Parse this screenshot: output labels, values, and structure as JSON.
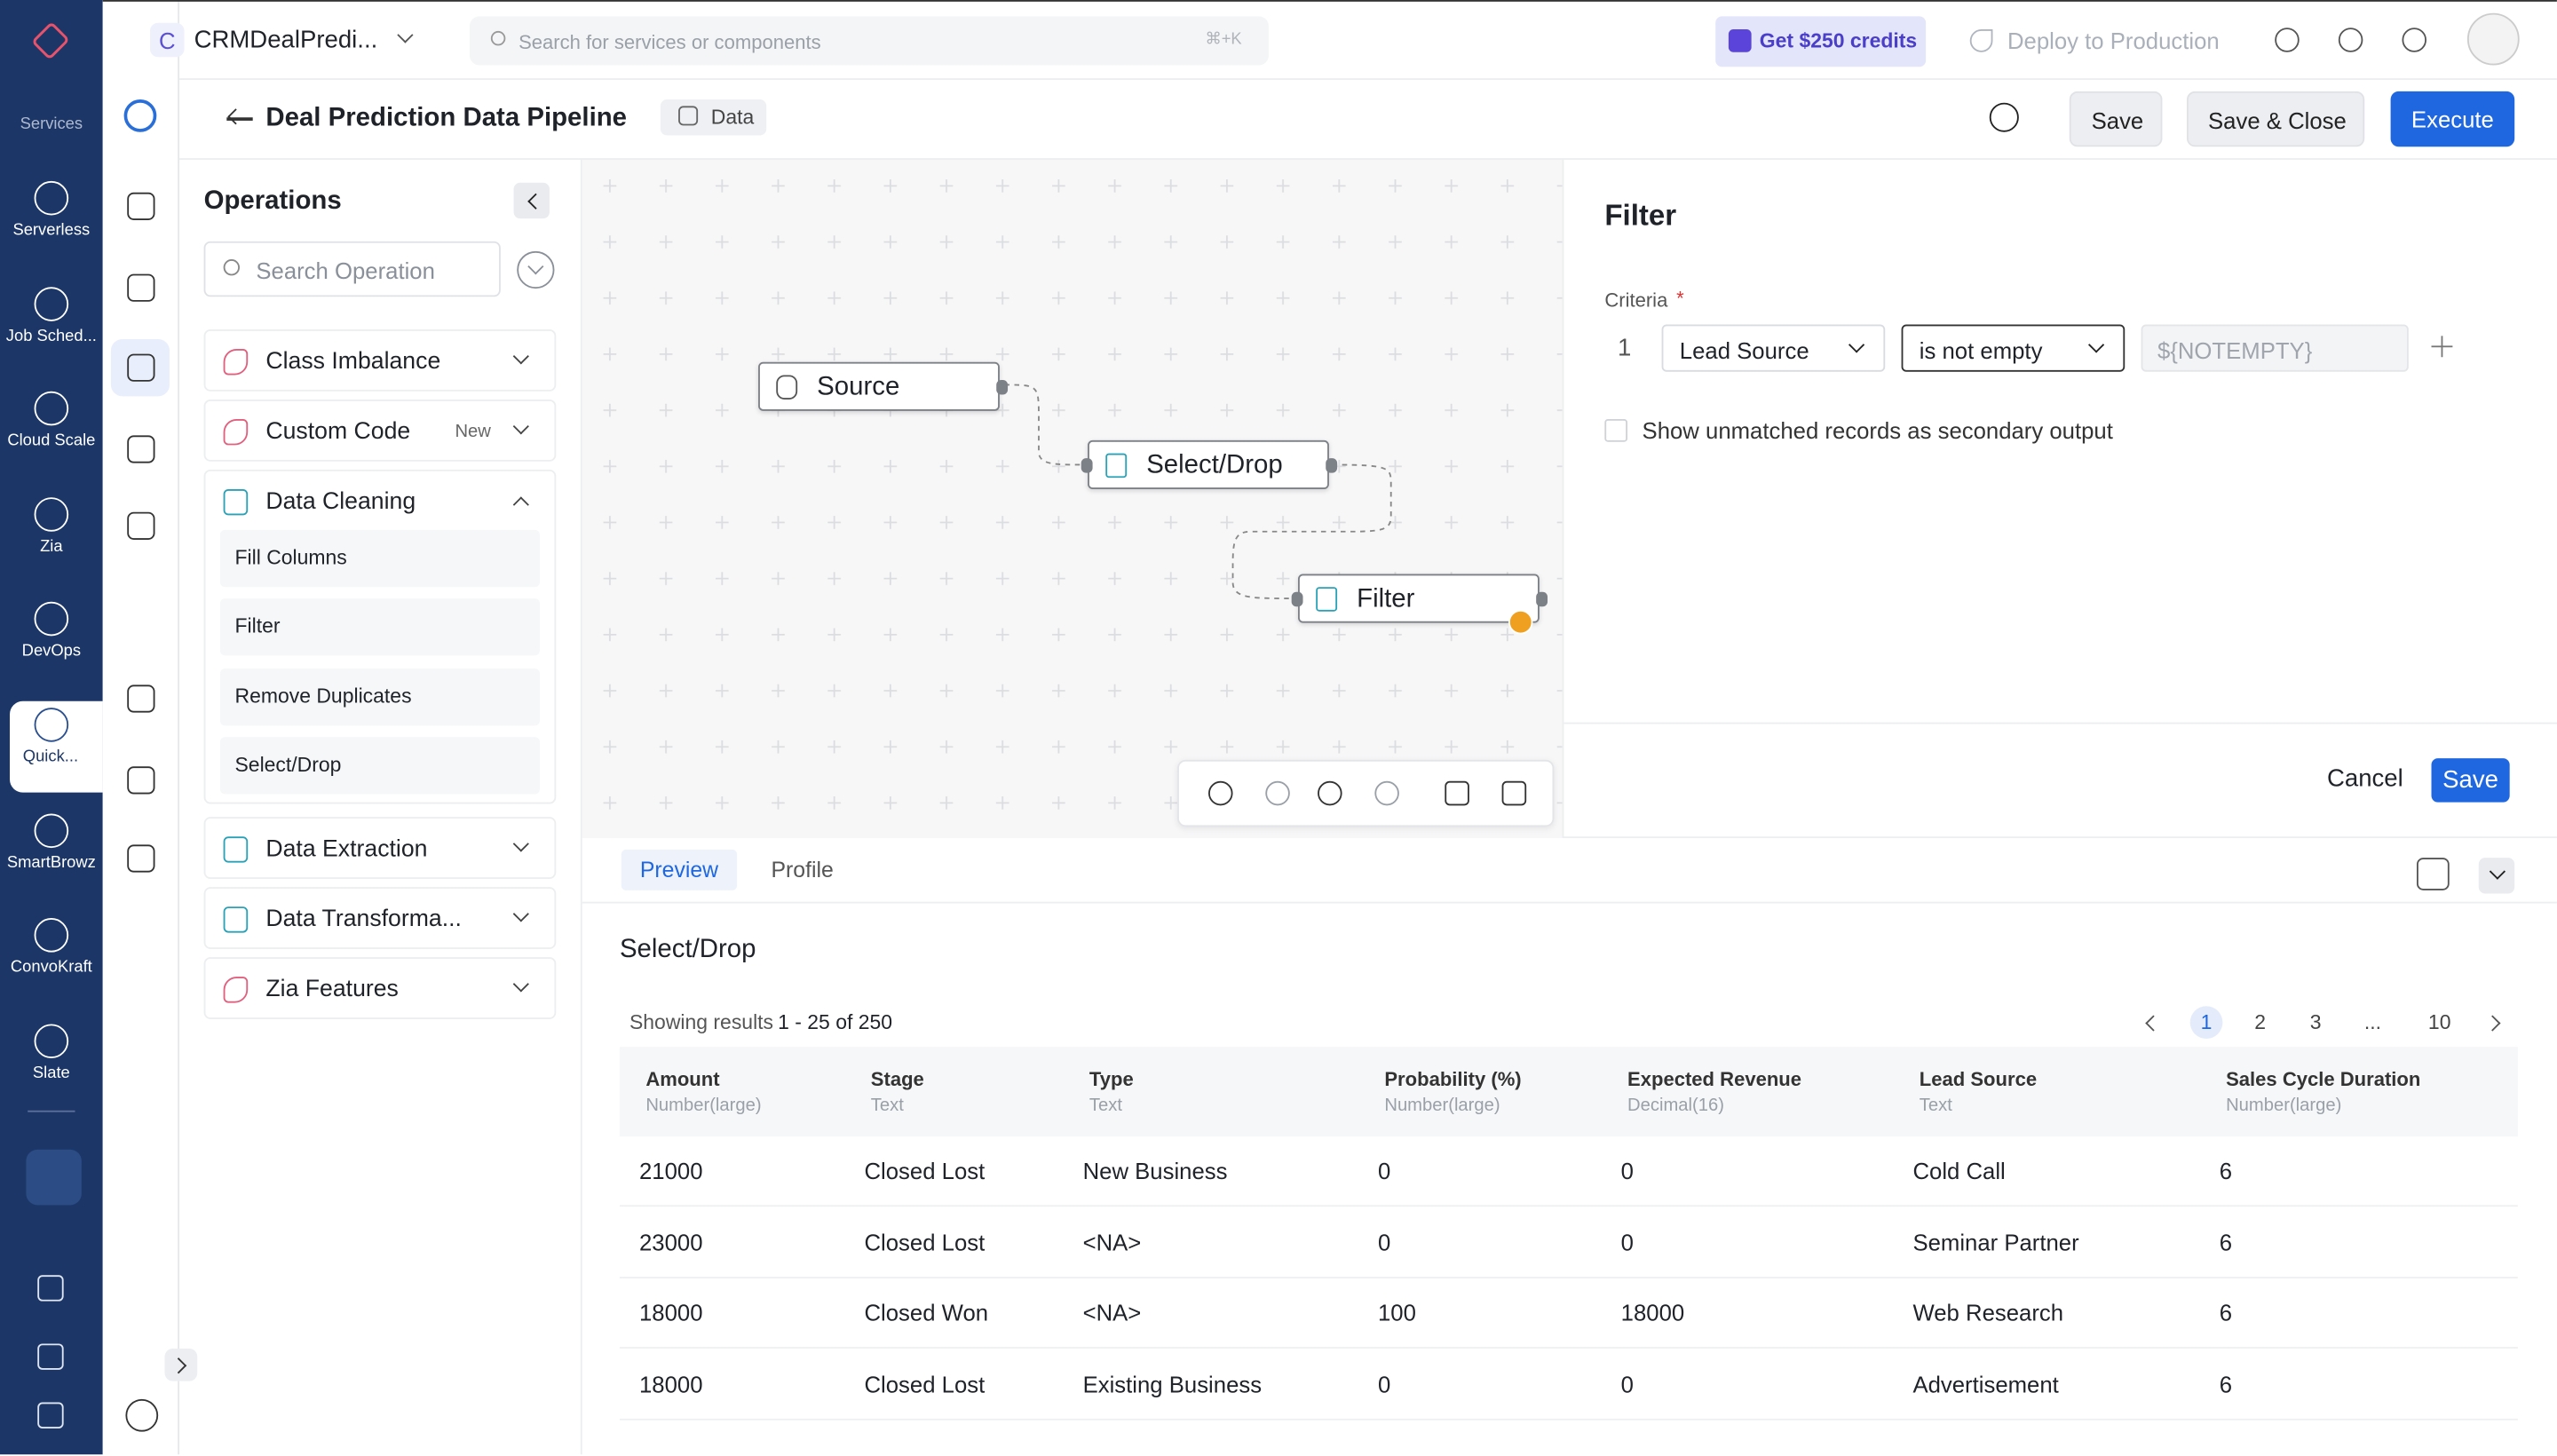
{
  "sidebar": {
    "label": "Services",
    "items": [
      "Serverless",
      "Job Sched...",
      "Cloud Scale",
      "Zia",
      "DevOps",
      "Quick...",
      "SmartBrowz",
      "ConvoKraft",
      "Slate"
    ]
  },
  "topbar": {
    "project_initial": "C",
    "project": "CRMDealPredi...",
    "search": "Search for services or components",
    "shortcut": "⌘+K",
    "credits": "Get $250 credits",
    "deploy": "Deploy to Production"
  },
  "header": {
    "title": "Deal Prediction Data Pipeline",
    "tag": "Data",
    "buttons": [
      "Save",
      "Save & Close",
      "Execute"
    ]
  },
  "operations": {
    "title": "Operations",
    "search": "Search Operation",
    "groups": [
      {
        "name": "Class Imbalance"
      },
      {
        "name": "Custom Code",
        "badge": "New"
      },
      {
        "name": "Data Cleaning",
        "items": [
          "Fill Columns",
          "Filter",
          "Remove Duplicates",
          "Select/Drop"
        ]
      },
      {
        "name": "Data Extraction"
      },
      {
        "name": "Data Transforma..."
      },
      {
        "name": "Zia Features"
      }
    ]
  },
  "canvas": {
    "nodes": [
      {
        "label": "Source"
      },
      {
        "label": "Select/Drop"
      },
      {
        "label": "Filter"
      }
    ]
  },
  "filter_panel": {
    "title": "Filter",
    "criteria_label": "Criteria",
    "required": "*",
    "row_number": "1",
    "field": "Lead Source",
    "operator": "is not empty",
    "value_placeholder": "${NOTEMPTY}",
    "checkbox": "Show unmatched records as secondary output",
    "cancel": "Cancel",
    "save": "Save"
  },
  "preview": {
    "tabs": [
      "Preview",
      "Profile"
    ],
    "title": "Select/Drop",
    "results_prefix": "Showing results",
    "results_range": "1 - 25 of 250",
    "pages": [
      "1",
      "2",
      "3",
      "...",
      "10"
    ],
    "columns": [
      {
        "name": "Amount",
        "type": "Number(large)"
      },
      {
        "name": "Stage",
        "type": "Text"
      },
      {
        "name": "Type",
        "type": "Text"
      },
      {
        "name": "Probability (%)",
        "type": "Number(large)"
      },
      {
        "name": "Expected Revenue",
        "type": "Decimal(16)"
      },
      {
        "name": "Lead Source",
        "type": "Text"
      },
      {
        "name": "Sales Cycle Duration",
        "type": "Number(large)"
      }
    ],
    "rows": [
      [
        21000,
        "Closed Lost",
        "New Business",
        0,
        0,
        "Cold Call",
        6
      ],
      [
        23000,
        "Closed Lost",
        "<NA>",
        0,
        0,
        "Seminar Partner",
        6
      ],
      [
        18000,
        "Closed Won",
        "<NA>",
        100,
        18000,
        "Web Research",
        6
      ],
      [
        18000,
        "Closed Lost",
        "Existing Business",
        0,
        0,
        "Advertisement",
        6
      ]
    ]
  }
}
